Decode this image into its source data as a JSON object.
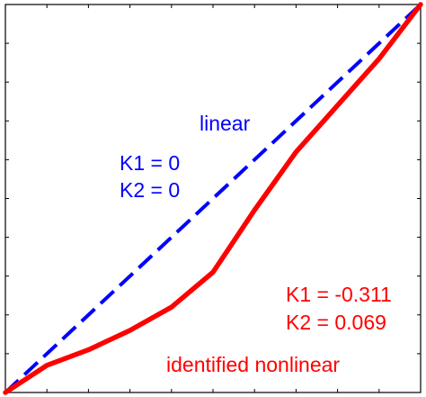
{
  "chart_data": {
    "type": "line",
    "title": "",
    "xlabel": "",
    "ylabel": "",
    "xlim": [
      0,
      1
    ],
    "ylim": [
      0,
      1
    ],
    "grid": false,
    "series": [
      {
        "name": "linear",
        "color": "#0000ff",
        "style": "dashed",
        "x": [
          0,
          1
        ],
        "y": [
          0,
          1
        ]
      },
      {
        "name": "identified nonlinear",
        "color": "#ff0000",
        "style": "solid",
        "x": [
          0,
          0.1,
          0.2,
          0.3,
          0.4,
          0.5,
          0.6,
          0.7,
          0.8,
          0.9,
          1.0
        ],
        "y": [
          0,
          0.07,
          0.11,
          0.16,
          0.22,
          0.31,
          0.47,
          0.62,
          0.74,
          0.86,
          1.0
        ]
      }
    ],
    "annotations": {
      "linear_name": "linear",
      "linear_k1": "K1 = 0",
      "linear_k2": "K2 = 0",
      "nonlinear_k1": "K1 = -0.311",
      "nonlinear_k2": "K2 = 0.069",
      "nonlinear_name": "identified nonlinear"
    },
    "x_ticks": 10,
    "y_ticks": 10
  }
}
